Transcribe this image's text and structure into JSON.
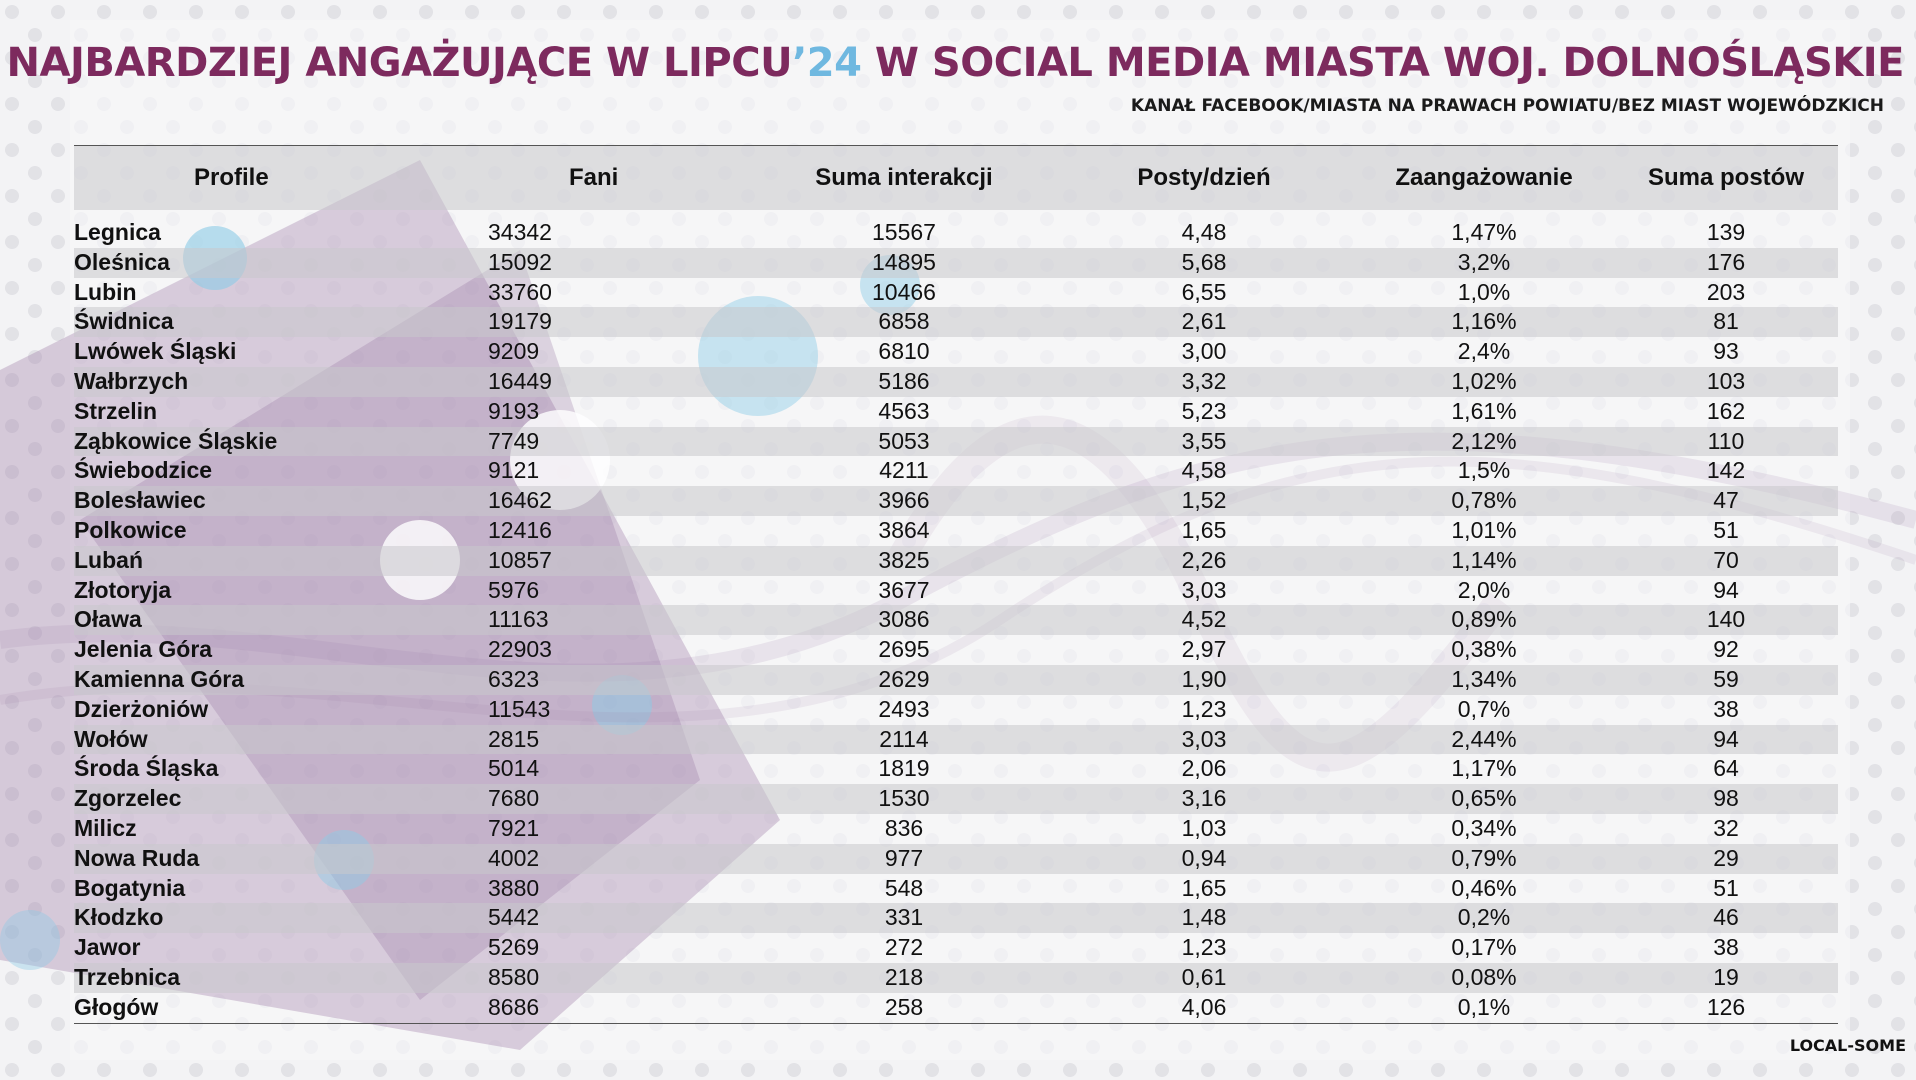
{
  "title": {
    "part1": "NAJBARDZIEJ ANGAŻUJĄCE W LIPCU",
    "year": "’24",
    "part2": " W SOCIAL MEDIA MIASTA WOJ. DOLNOŚLĄSKIE"
  },
  "subtitle": "KANAŁ FACEBOOK/MIASTA NA PRAWACH POWIATU/BEZ MIAST WOJEWÓDZKICH",
  "brand": "LOCAL-SOME",
  "colors": {
    "title": "#7d2a5e",
    "year_accent": "#6fb8e0",
    "decor_purple": "#9d7aa6",
    "decor_blue": "#8ccbe6"
  },
  "table": {
    "headers": [
      "Profile",
      "Fani",
      "Suma interakcji",
      "Posty/dzień",
      "Zaangażowanie",
      "Suma postów"
    ],
    "rows": [
      [
        "Legnica",
        "34342",
        "15567",
        "4,48",
        "1,47%",
        "139"
      ],
      [
        "Oleśnica",
        "15092",
        "14895",
        "5,68",
        "3,2%",
        "176"
      ],
      [
        "Lubin",
        "33760",
        "10466",
        "6,55",
        "1,0%",
        "203"
      ],
      [
        "Świdnica",
        "19179",
        "6858",
        "2,61",
        "1,16%",
        "81"
      ],
      [
        "Lwówek Śląski",
        "9209",
        "6810",
        "3,00",
        "2,4%",
        "93"
      ],
      [
        "Wałbrzych",
        "16449",
        "5186",
        "3,32",
        "1,02%",
        "103"
      ],
      [
        "Strzelin",
        "9193",
        "4563",
        "5,23",
        "1,61%",
        "162"
      ],
      [
        "Ząbkowice Śląskie",
        "7749",
        "5053",
        "3,55",
        "2,12%",
        "110"
      ],
      [
        "Świebodzice",
        "9121",
        "4211",
        "4,58",
        "1,5%",
        "142"
      ],
      [
        "Bolesławiec",
        "16462",
        "3966",
        "1,52",
        "0,78%",
        "47"
      ],
      [
        "Polkowice",
        "12416",
        "3864",
        "1,65",
        "1,01%",
        "51"
      ],
      [
        "Lubań",
        "10857",
        "3825",
        "2,26",
        "1,14%",
        "70"
      ],
      [
        "Złotoryja",
        "5976",
        "3677",
        "3,03",
        "2,0%",
        "94"
      ],
      [
        "Oława",
        "11163",
        "3086",
        "4,52",
        "0,89%",
        "140"
      ],
      [
        "Jelenia Góra",
        "22903",
        "2695",
        "2,97",
        "0,38%",
        "92"
      ],
      [
        "Kamienna Góra",
        "6323",
        "2629",
        "1,90",
        "1,34%",
        "59"
      ],
      [
        "Dzierżoniów",
        "11543",
        "2493",
        "1,23",
        "0,7%",
        "38"
      ],
      [
        "Wołów",
        "2815",
        "2114",
        "3,03",
        "2,44%",
        "94"
      ],
      [
        "Środa Śląska",
        "5014",
        "1819",
        "2,06",
        "1,17%",
        "64"
      ],
      [
        "Zgorzelec",
        "7680",
        "1530",
        "3,16",
        "0,65%",
        "98"
      ],
      [
        "Milicz",
        "7921",
        "836",
        "1,03",
        "0,34%",
        "32"
      ],
      [
        "Nowa Ruda",
        "4002",
        "977",
        "0,94",
        "0,79%",
        "29"
      ],
      [
        "Bogatynia",
        "3880",
        "548",
        "1,65",
        "0,46%",
        "51"
      ],
      [
        "Kłodzko",
        "5442",
        "331",
        "1,48",
        "0,2%",
        "46"
      ],
      [
        "Jawor",
        "5269",
        "272",
        "1,23",
        "0,17%",
        "38"
      ],
      [
        "Trzebnica",
        "8580",
        "218",
        "0,61",
        "0,08%",
        "19"
      ],
      [
        "Głogów",
        "8686",
        "258",
        "4,06",
        "0,1%",
        "126"
      ]
    ]
  }
}
